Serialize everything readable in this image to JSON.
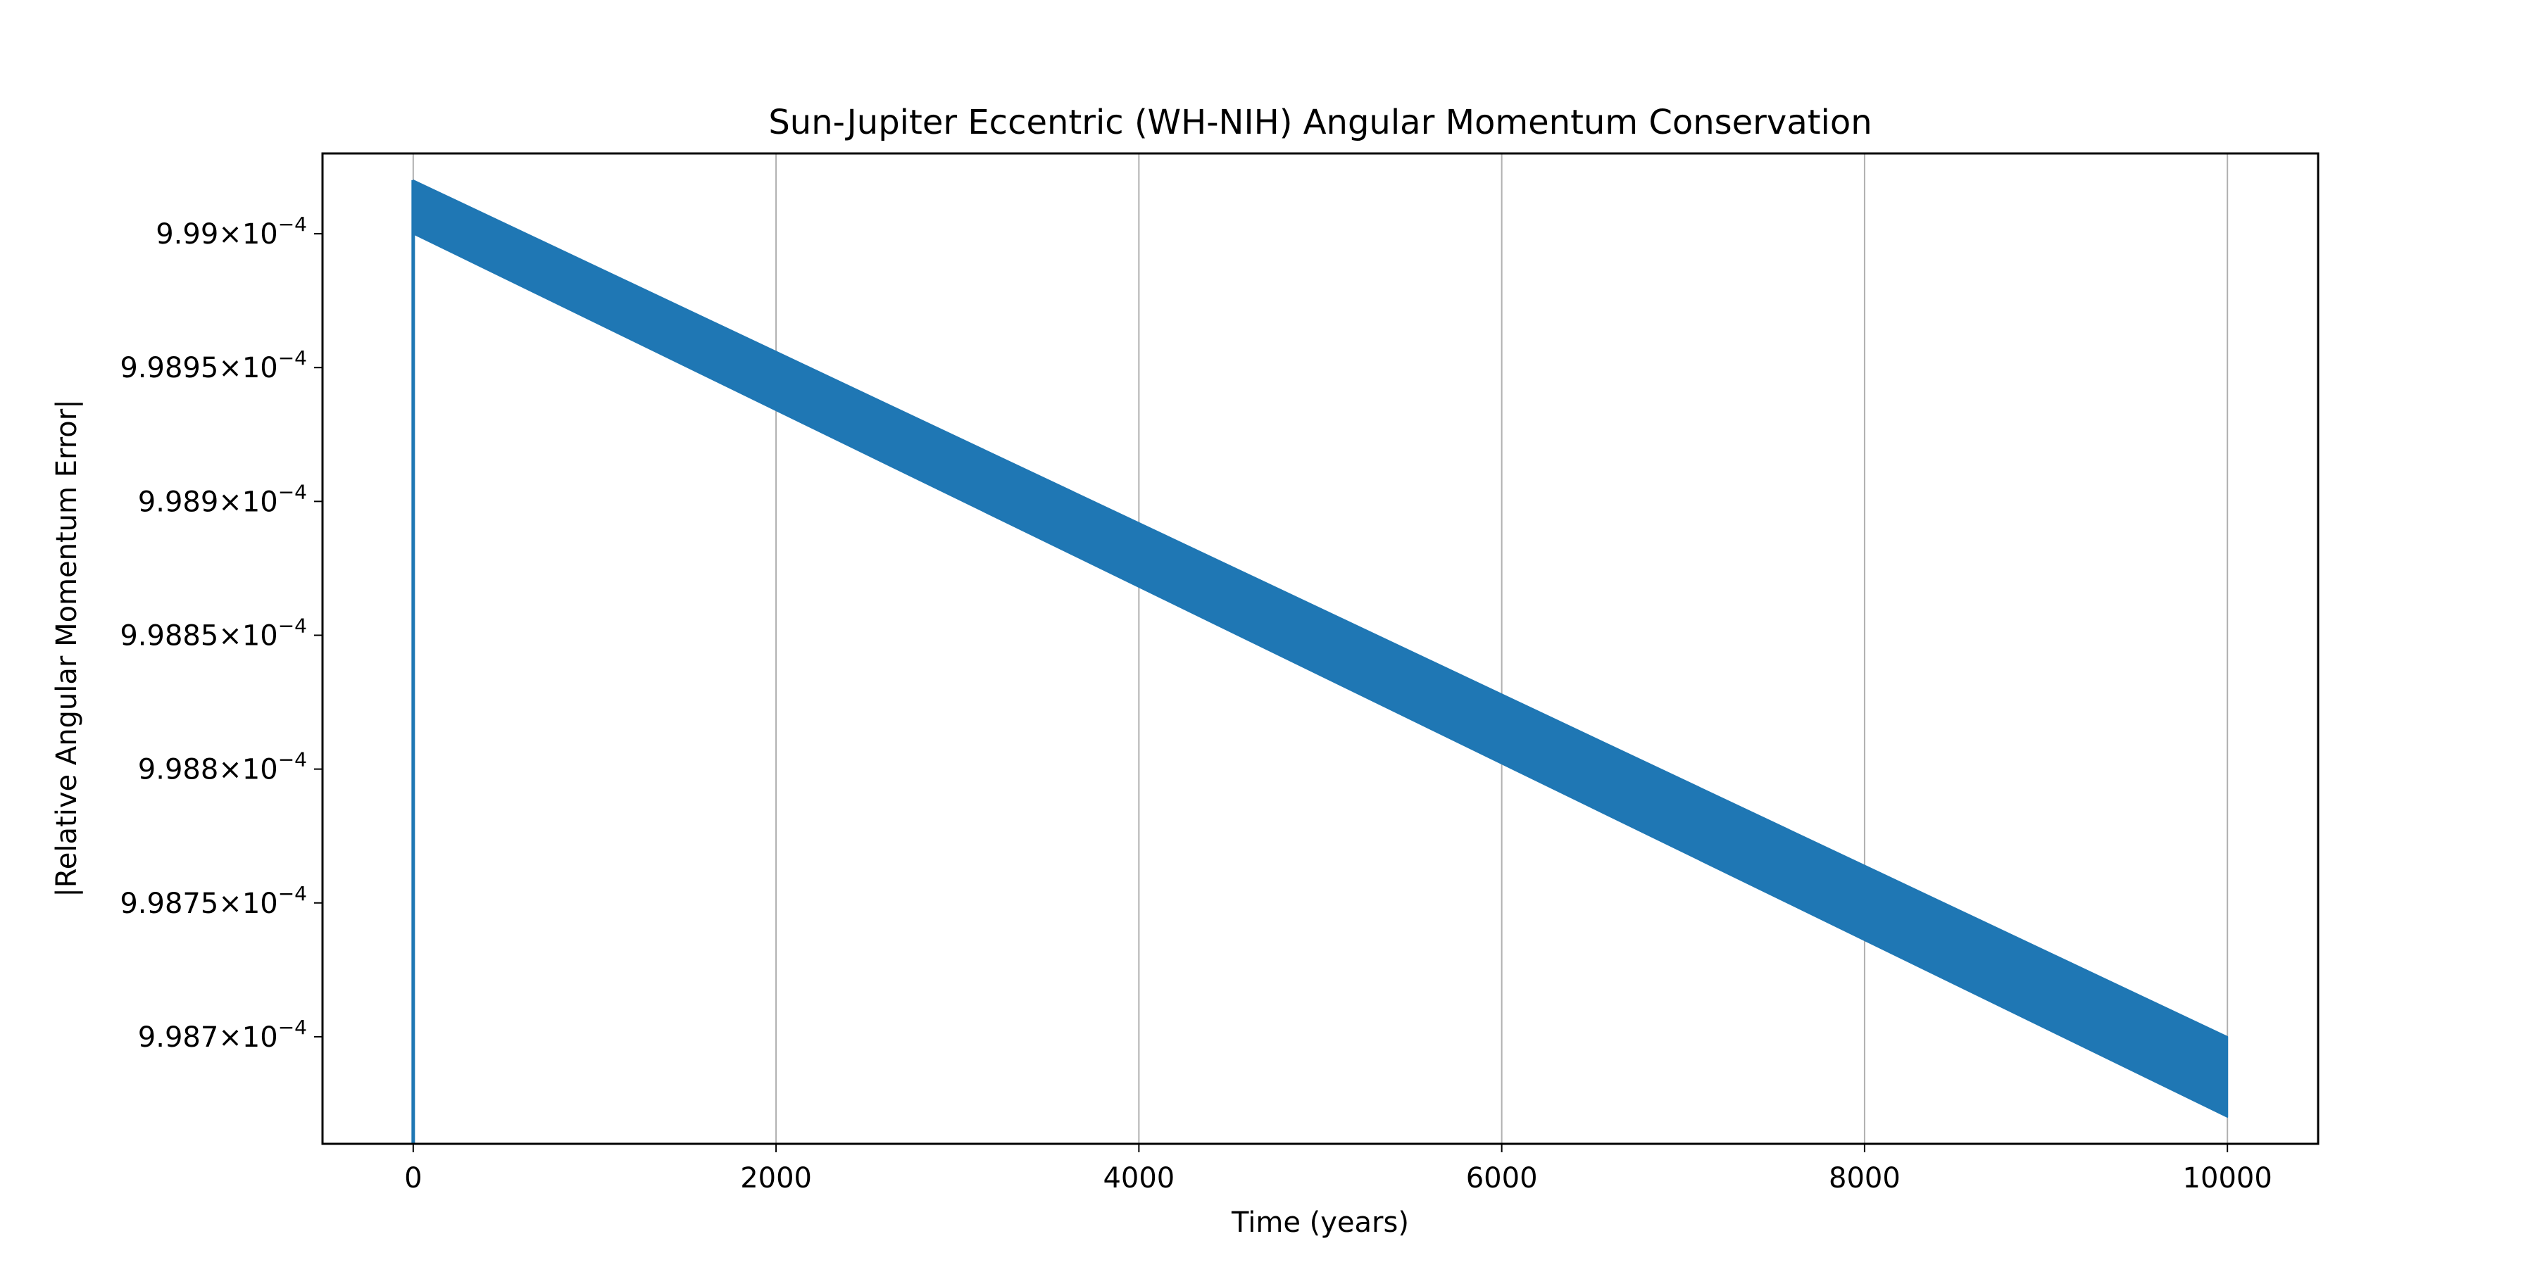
{
  "chart_data": {
    "type": "area",
    "title": "Sun-Jupiter Eccentric (WH-NIH) Angular Momentum Conservation",
    "xlabel": "Time (years)",
    "ylabel": "|Relative Angular Momentum Error|",
    "xlim": [
      -500,
      10500
    ],
    "ylim": [
      0.00099866,
      0.00099903
    ],
    "grid": "x-major",
    "legend": "none",
    "x_ticks": [
      {
        "value": 0,
        "label": "0"
      },
      {
        "value": 2000,
        "label": "2000"
      },
      {
        "value": 4000,
        "label": "4000"
      },
      {
        "value": 6000,
        "label": "6000"
      },
      {
        "value": 8000,
        "label": "8000"
      },
      {
        "value": 10000,
        "label": "10000"
      }
    ],
    "y_ticks": [
      {
        "value": 0.000999,
        "mantissa": "9.99",
        "exponent": "−4"
      },
      {
        "value": 0.00099895,
        "mantissa": "9.9895",
        "exponent": "−4"
      },
      {
        "value": 0.0009989,
        "mantissa": "9.989",
        "exponent": "−4"
      },
      {
        "value": 0.00099885,
        "mantissa": "9.9885",
        "exponent": "−4"
      },
      {
        "value": 0.0009988,
        "mantissa": "9.988",
        "exponent": "−4"
      },
      {
        "value": 0.00099875,
        "mantissa": "9.9875",
        "exponent": "−4"
      },
      {
        "value": 0.0009987,
        "mantissa": "9.987",
        "exponent": "−4"
      }
    ],
    "times_sign": "×",
    "base": "10",
    "series": [
      {
        "color": "#1f77b4",
        "initial_spike": {
          "x": 0,
          "y_from": 0.00099866,
          "y_to": 0.00099902
        },
        "band_upper": [
          {
            "x": 0,
            "y": 0.00099902
          },
          {
            "x": 10000,
            "y": 0.0009987
          }
        ],
        "band_lower": [
          {
            "x": 0,
            "y": 0.000999
          },
          {
            "x": 10000,
            "y": 0.00099867
          }
        ]
      }
    ]
  }
}
